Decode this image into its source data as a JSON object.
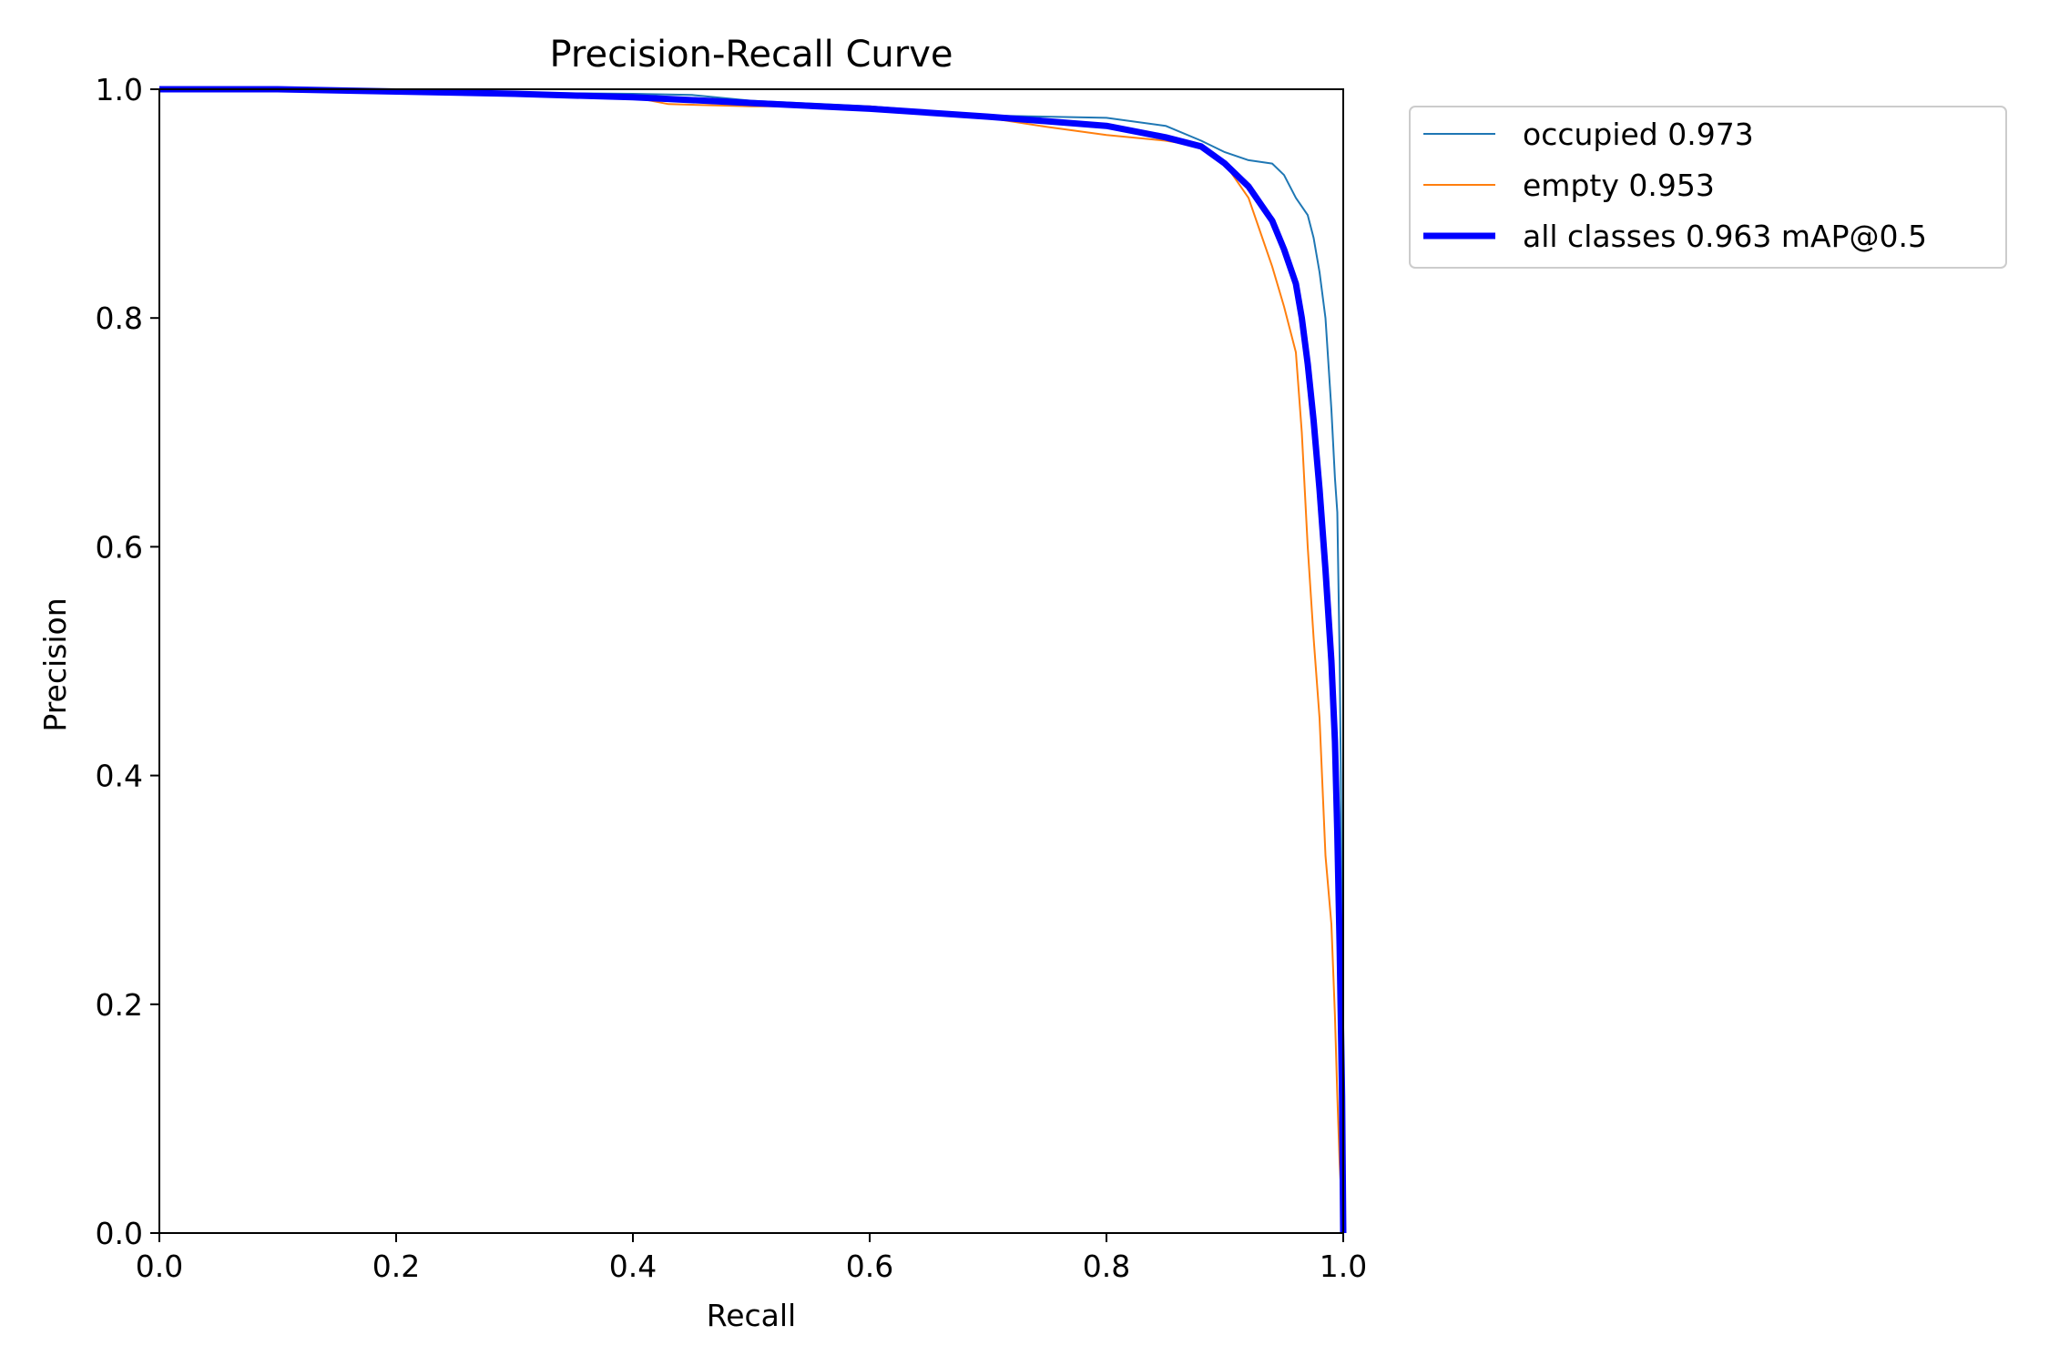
{
  "chart_data": {
    "type": "line",
    "title": "Precision-Recall Curve",
    "xlabel": "Recall",
    "ylabel": "Precision",
    "xlim": [
      0.0,
      1.0
    ],
    "ylim": [
      0.0,
      1.0
    ],
    "xticks": [
      "0.0",
      "0.2",
      "0.4",
      "0.6",
      "0.8",
      "1.0"
    ],
    "yticks": [
      "0.0",
      "0.2",
      "0.4",
      "0.6",
      "0.8",
      "1.0"
    ],
    "grid": false,
    "legend_position": "outside-top-right",
    "series": [
      {
        "name": "occupied 0.973",
        "color": "#1f77b4",
        "x": [
          0.0,
          0.1,
          0.2,
          0.3,
          0.4,
          0.45,
          0.5,
          0.6,
          0.7,
          0.8,
          0.85,
          0.88,
          0.9,
          0.92,
          0.94,
          0.95,
          0.96,
          0.97,
          0.975,
          0.98,
          0.985,
          0.99,
          0.993,
          0.995,
          0.997,
          0.998,
          0.999,
          1.0
        ],
        "y": [
          1.0,
          1.0,
          0.998,
          0.997,
          0.996,
          0.995,
          0.99,
          0.985,
          0.977,
          0.975,
          0.968,
          0.955,
          0.945,
          0.938,
          0.935,
          0.925,
          0.905,
          0.89,
          0.87,
          0.84,
          0.8,
          0.72,
          0.66,
          0.63,
          0.5,
          0.4,
          0.2,
          0.0
        ]
      },
      {
        "name": "empty 0.953",
        "color": "#ff7f0e",
        "x": [
          0.0,
          0.1,
          0.2,
          0.3,
          0.4,
          0.43,
          0.5,
          0.6,
          0.7,
          0.75,
          0.8,
          0.85,
          0.88,
          0.9,
          0.92,
          0.93,
          0.94,
          0.95,
          0.96,
          0.965,
          0.97,
          0.975,
          0.98,
          0.985,
          0.99,
          0.993,
          0.995,
          0.997,
          1.0
        ],
        "y": [
          1.0,
          1.0,
          0.998,
          0.995,
          0.993,
          0.987,
          0.985,
          0.985,
          0.975,
          0.967,
          0.96,
          0.955,
          0.95,
          0.935,
          0.905,
          0.875,
          0.845,
          0.81,
          0.77,
          0.7,
          0.6,
          0.52,
          0.45,
          0.33,
          0.27,
          0.19,
          0.12,
          0.06,
          0.0
        ]
      },
      {
        "name": "all classes 0.963 mAP@0.5",
        "color": "#0000ff",
        "x": [
          0.0,
          0.1,
          0.2,
          0.3,
          0.4,
          0.5,
          0.6,
          0.7,
          0.8,
          0.85,
          0.88,
          0.9,
          0.92,
          0.93,
          0.94,
          0.95,
          0.96,
          0.965,
          0.97,
          0.975,
          0.98,
          0.985,
          0.99,
          0.993,
          0.995,
          0.997,
          0.999,
          1.0
        ],
        "y": [
          1.0,
          1.0,
          0.998,
          0.996,
          0.993,
          0.988,
          0.983,
          0.976,
          0.968,
          0.958,
          0.95,
          0.935,
          0.915,
          0.9,
          0.885,
          0.86,
          0.83,
          0.8,
          0.76,
          0.71,
          0.65,
          0.58,
          0.5,
          0.43,
          0.35,
          0.25,
          0.12,
          0.0
        ]
      }
    ]
  }
}
